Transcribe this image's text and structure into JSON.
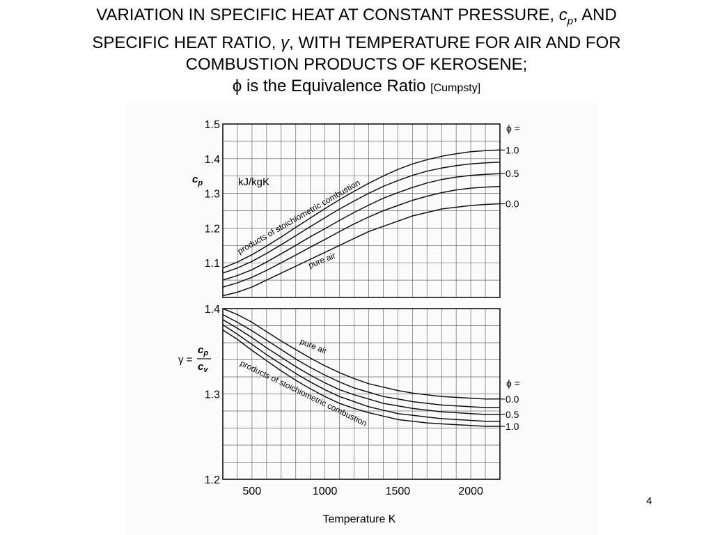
{
  "slide": {
    "title_line1_a": "VARIATION IN SPECIFIC HEAT AT CONSTANT PRESSURE, ",
    "title_cp_c": "c",
    "title_cp_p": "p",
    "title_line1_b": ", AND",
    "title_line2_a": "SPECIFIC HEAT RATIO, ",
    "title_gamma": "γ",
    "title_line2_b": ", WITH TEMPERATURE FOR AIR AND FOR",
    "title_line3": "COMBUSTION PRODUCTS OF KEROSENE;",
    "title_line4_phi": "ϕ",
    "title_line4_text": " is the Equivalence Ratio ",
    "title_source": "[Cumpsty]",
    "page_number": "4"
  },
  "chart_data": [
    {
      "type": "line",
      "ylabel": "cp",
      "ylabel_main": "c",
      "ylabel_sub": "p",
      "units": "kJ/kgK",
      "xlim": [
        300,
        2200
      ],
      "ylim": [
        1.0,
        1.5
      ],
      "xticks": [
        500,
        1000,
        1500,
        2000
      ],
      "yticks": [
        1.1,
        1.2,
        1.3,
        1.4,
        1.5
      ],
      "ytick_labels": [
        "1.1",
        "1.2",
        "1.3",
        "1.4",
        "1.5"
      ],
      "grid": true,
      "legend_title": "ϕ =",
      "x": [
        300,
        400,
        500,
        600,
        700,
        800,
        900,
        1000,
        1100,
        1200,
        1300,
        1400,
        1500,
        1600,
        1700,
        1800,
        1900,
        2000,
        2100,
        2200
      ],
      "series": [
        {
          "name": "0.0",
          "values": [
            1.005,
            1.015,
            1.03,
            1.05,
            1.07,
            1.09,
            1.11,
            1.13,
            1.15,
            1.17,
            1.19,
            1.205,
            1.22,
            1.235,
            1.245,
            1.255,
            1.26,
            1.265,
            1.268,
            1.27
          ]
        },
        {
          "name": "",
          "values": [
            1.03,
            1.042,
            1.058,
            1.078,
            1.1,
            1.122,
            1.145,
            1.167,
            1.19,
            1.212,
            1.232,
            1.25,
            1.265,
            1.28,
            1.292,
            1.302,
            1.31,
            1.315,
            1.318,
            1.32
          ]
        },
        {
          "name": "0.5",
          "values": [
            1.05,
            1.063,
            1.08,
            1.102,
            1.126,
            1.15,
            1.175,
            1.198,
            1.222,
            1.245,
            1.266,
            1.286,
            1.302,
            1.317,
            1.33,
            1.34,
            1.347,
            1.352,
            1.355,
            1.357
          ]
        },
        {
          "name": "",
          "values": [
            1.07,
            1.085,
            1.104,
            1.127,
            1.152,
            1.178,
            1.204,
            1.23,
            1.255,
            1.278,
            1.3,
            1.32,
            1.337,
            1.352,
            1.364,
            1.373,
            1.38,
            1.385,
            1.388,
            1.39
          ]
        },
        {
          "name": "1.0",
          "values": [
            1.085,
            1.102,
            1.123,
            1.148,
            1.174,
            1.202,
            1.229,
            1.256,
            1.282,
            1.306,
            1.329,
            1.35,
            1.369,
            1.385,
            1.397,
            1.407,
            1.414,
            1.42,
            1.423,
            1.425
          ]
        }
      ],
      "annotations": [
        "products of stoichiometric combustion",
        "pure air"
      ]
    },
    {
      "type": "line",
      "ylabel": "γ = cp/cv",
      "ylabel_gamma": "γ =",
      "ylabel_num_main": "c",
      "ylabel_num_sub": "p",
      "ylabel_den_main": "c",
      "ylabel_den_sub": "v",
      "xlabel": "Temperature K",
      "xlim": [
        300,
        2200
      ],
      "ylim": [
        1.2,
        1.4
      ],
      "xticks": [
        500,
        1000,
        1500,
        2000
      ],
      "xtick_labels": [
        "500",
        "1000",
        "1500",
        "2000"
      ],
      "yticks": [
        1.2,
        1.3,
        1.4
      ],
      "ytick_labels": [
        "1.2",
        "1.3",
        "1.4"
      ],
      "grid": true,
      "legend_title": "ϕ =",
      "x": [
        300,
        400,
        500,
        600,
        700,
        800,
        900,
        1000,
        1100,
        1200,
        1300,
        1400,
        1500,
        1600,
        1700,
        1800,
        1900,
        2000,
        2100,
        2200
      ],
      "series": [
        {
          "name": "0.0",
          "values": [
            1.4,
            1.393,
            1.384,
            1.373,
            1.362,
            1.352,
            1.342,
            1.333,
            1.325,
            1.318,
            1.312,
            1.308,
            1.304,
            1.301,
            1.299,
            1.297,
            1.296,
            1.295,
            1.294,
            1.294
          ]
        },
        {
          "name": "",
          "values": [
            1.393,
            1.384,
            1.374,
            1.363,
            1.352,
            1.341,
            1.331,
            1.322,
            1.314,
            1.307,
            1.302,
            1.297,
            1.294,
            1.291,
            1.289,
            1.287,
            1.286,
            1.285,
            1.284,
            1.284
          ]
        },
        {
          "name": "0.5",
          "values": [
            1.387,
            1.377,
            1.366,
            1.354,
            1.343,
            1.332,
            1.322,
            1.313,
            1.305,
            1.299,
            1.294,
            1.289,
            1.286,
            1.283,
            1.281,
            1.279,
            1.278,
            1.277,
            1.276,
            1.276
          ]
        },
        {
          "name": "",
          "values": [
            1.381,
            1.37,
            1.358,
            1.346,
            1.335,
            1.324,
            1.314,
            1.305,
            1.297,
            1.291,
            1.285,
            1.281,
            1.277,
            1.275,
            1.273,
            1.271,
            1.27,
            1.269,
            1.268,
            1.268
          ]
        },
        {
          "name": "1.0",
          "values": [
            1.375,
            1.364,
            1.351,
            1.339,
            1.327,
            1.316,
            1.306,
            1.297,
            1.289,
            1.283,
            1.278,
            1.274,
            1.27,
            1.268,
            1.266,
            1.265,
            1.264,
            1.263,
            1.262,
            1.262
          ]
        }
      ],
      "annotations": [
        "pure air",
        "products of stoichiometric combustion"
      ]
    }
  ]
}
